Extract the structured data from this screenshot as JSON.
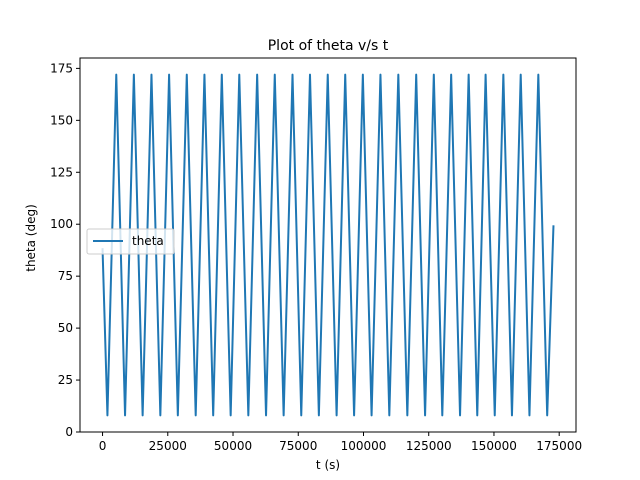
{
  "chart_data": {
    "type": "line",
    "title": "Plot of theta v/s t",
    "xlabel": "t (s)",
    "ylabel": "theta (deg)",
    "xlim": [
      -8640,
      181440
    ],
    "ylim": [
      0,
      180
    ],
    "xticks": [
      0,
      25000,
      50000,
      75000,
      100000,
      125000,
      150000,
      175000
    ],
    "xtick_labels": [
      "0",
      "25000",
      "50000",
      "75000",
      "100000",
      "125000",
      "150000",
      "175000"
    ],
    "yticks": [
      0,
      25,
      50,
      75,
      100,
      125,
      150,
      175
    ],
    "ytick_labels": [
      "0",
      "25",
      "50",
      "75",
      "100",
      "125",
      "150",
      "175"
    ],
    "grid": false,
    "legend": {
      "position": "center-left",
      "entries": [
        "theta"
      ]
    },
    "series": [
      {
        "name": "theta",
        "color": "#1f77b4",
        "x": [
          0,
          1870,
          5260,
          8620,
          12000,
          15360,
          18750,
          22150,
          25500,
          28850,
          32280,
          35700,
          39050,
          42400,
          45700,
          49100,
          52400,
          55870,
          59250,
          62650,
          66000,
          69400,
          72800,
          76150,
          79500,
          82900,
          86300,
          89700,
          93000,
          96400,
          99750,
          103100,
          106500,
          109900,
          113350,
          116800,
          120200,
          123600,
          126950,
          130200,
          133600,
          137000,
          140300,
          143600,
          146800,
          150300,
          153600,
          156900,
          160250,
          163600,
          167000,
          170400,
          172800
        ],
        "y": [
          88,
          8,
          172,
          8,
          172,
          8,
          172,
          8,
          172,
          8,
          172,
          8,
          172,
          8,
          172,
          8,
          172,
          8,
          172,
          8,
          172,
          8,
          172,
          8,
          172,
          8,
          172,
          8,
          172,
          8,
          172,
          8,
          172,
          8,
          172,
          8,
          172,
          8,
          172,
          8,
          172,
          8,
          172,
          8,
          172,
          8,
          172,
          8,
          172,
          8,
          172,
          8,
          99
        ]
      }
    ]
  }
}
